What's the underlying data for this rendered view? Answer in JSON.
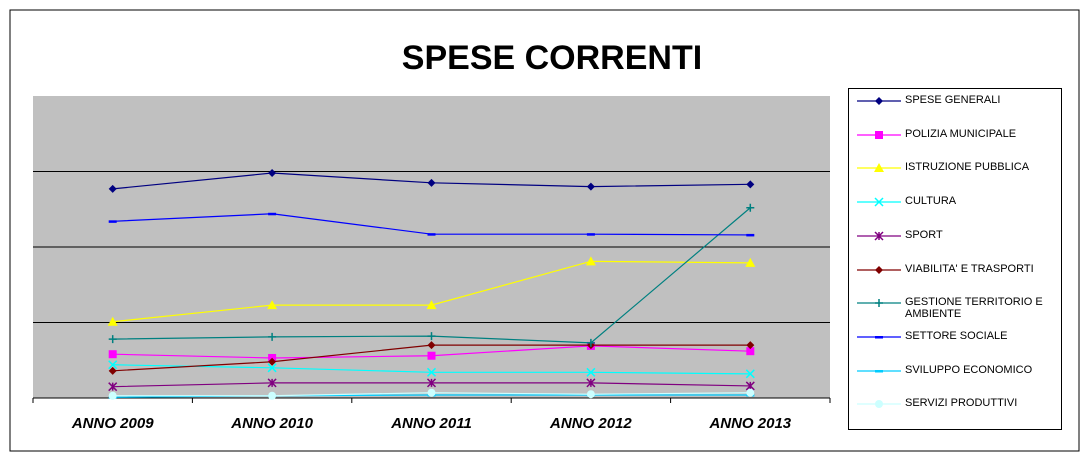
{
  "chart_data": {
    "type": "line",
    "title": "SPESE CORRENTI",
    "categories": [
      "ANNO 2009",
      "ANNO 2010",
      "ANNO 2011",
      "ANNO 2012",
      "ANNO 2013"
    ],
    "ylim": [
      0,
      4
    ],
    "yticks": [
      1,
      2,
      3
    ],
    "grid": true,
    "series": [
      {
        "name": "SPESE GENERALI",
        "color": "#000080",
        "marker": "diamond",
        "values": [
          2.77,
          2.98,
          2.85,
          2.8,
          2.83
        ]
      },
      {
        "name": "POLIZIA MUNICIPALE",
        "color": "#ff00ff",
        "marker": "square",
        "values": [
          0.58,
          0.53,
          0.56,
          0.69,
          0.62
        ]
      },
      {
        "name": "ISTRUZIONE PUBBLICA",
        "color": "#ffff00",
        "marker": "triangle",
        "values": [
          1.01,
          1.23,
          1.23,
          1.81,
          1.79
        ]
      },
      {
        "name": "CULTURA",
        "color": "#00ffff",
        "marker": "x",
        "values": [
          0.44,
          0.4,
          0.34,
          0.34,
          0.32
        ]
      },
      {
        "name": "SPORT",
        "color": "#800080",
        "marker": "star",
        "values": [
          0.15,
          0.2,
          0.2,
          0.2,
          0.16
        ]
      },
      {
        "name": "VIABILITA' E TRASPORTI",
        "color": "#800000",
        "marker": "diamond",
        "values": [
          0.36,
          0.48,
          0.7,
          0.7,
          0.7
        ]
      },
      {
        "name": "GESTIONE TERRITORIO E AMBIENTE",
        "color": "#008080",
        "marker": "plus",
        "values": [
          0.78,
          0.81,
          0.82,
          0.73,
          2.52
        ]
      },
      {
        "name": "SETTORE SOCIALE",
        "color": "#0000ff",
        "marker": "dash",
        "values": [
          2.34,
          2.44,
          2.17,
          2.17,
          2.16
        ]
      },
      {
        "name": "SVILUPPO ECONOMICO",
        "color": "#00ccff",
        "marker": "dash",
        "values": [
          0.01,
          0.03,
          0.04,
          0.04,
          0.04
        ]
      },
      {
        "name": "SERVIZI PRODUTTIVI",
        "color": "#ccffff",
        "marker": "circle",
        "values": [
          0.03,
          0.03,
          0.07,
          0.05,
          0.07
        ]
      }
    ]
  }
}
